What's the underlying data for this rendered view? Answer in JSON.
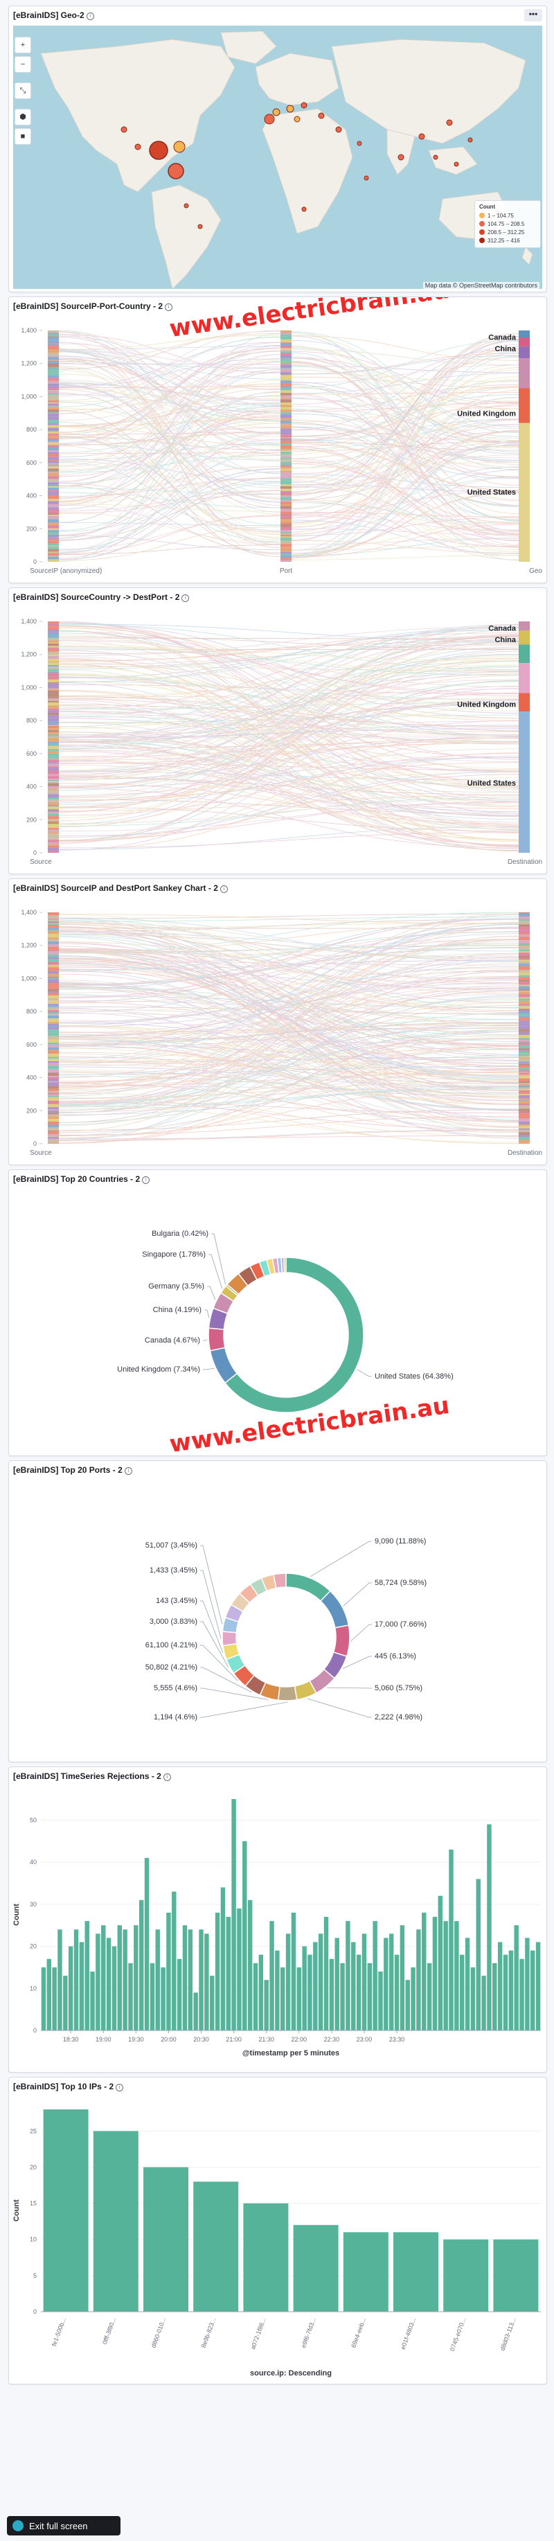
{
  "panels": {
    "geo": {
      "title": "[eBrainIDS] Geo-2",
      "menu_label": "•••",
      "controls": [
        "+",
        "−",
        "⤡",
        "⬢",
        "■"
      ],
      "legend": {
        "title": "Count",
        "items": [
          {
            "label": "1 – 104.75",
            "color": "#f5b651"
          },
          {
            "label": "104.75 – 208.5",
            "color": "#e7664c"
          },
          {
            "label": "208.5 – 312.25",
            "color": "#d4442a"
          },
          {
            "label": "312.25 – 416",
            "color": "#b0250c"
          }
        ]
      },
      "attribution": "Map data © OpenStreetMap contributors"
    },
    "sankey1": {
      "title": "[eBrainIDS] SourceIP-Port-Country - 2",
      "y_ticks": [
        "1,400",
        "1,200",
        "1,000",
        "800",
        "600",
        "400",
        "200",
        "0"
      ],
      "axis_labels": [
        "SourceIP (anonymized)",
        "Port",
        "Geo"
      ],
      "node_labels": [
        "Canada",
        "China",
        "United Kingdom",
        "United States"
      ]
    },
    "sankey2": {
      "title": "[eBrainIDS] SourceCountry -> DestPort - 2",
      "y_ticks": [
        "1,400",
        "1,200",
        "1,000",
        "800",
        "600",
        "400",
        "200",
        "0"
      ],
      "axis_labels": [
        "Source",
        "Destination"
      ],
      "node_labels": [
        "Canada",
        "China",
        "United Kingdom",
        "United States"
      ]
    },
    "sankey3": {
      "title": "[eBrainIDS] SourceIP and DestPort Sankey Chart - 2",
      "y_ticks": [
        "1,400",
        "1,200",
        "1,000",
        "800",
        "600",
        "400",
        "200",
        "0"
      ],
      "axis_labels": [
        "Source",
        "Destination"
      ]
    },
    "countries": {
      "title": "[eBrainIDS] Top 20 Countries - 2"
    },
    "ports": {
      "title": "[eBrainIDS] Top 20 Ports - 2"
    },
    "timeseries": {
      "title": "[eBrainIDS] TimeSeries Rejections - 2"
    },
    "topips": {
      "title": "[eBrainIDS] Top 10 IPs - 2"
    }
  },
  "watermark": "www.electricbrain.au",
  "exit_fullscreen": "Exit full screen",
  "chart_data": [
    {
      "type": "pie",
      "title": "[eBrainIDS] Top 20 Countries - 2",
      "labels": [
        "United States (64.38%)",
        "United Kingdom (7.34%)",
        "Canada (4.67%)",
        "China (4.19%)",
        "Germany (3.5%)",
        "Singapore (1.78%)",
        "Bulgaria (0.42%)"
      ],
      "values": [
        64.38,
        7.34,
        4.67,
        4.19,
        3.5,
        1.78,
        0.42
      ],
      "other_slices": [
        3.2,
        2.8,
        2.1,
        1.6,
        1.2,
        1.0,
        0.8,
        0.6,
        0.4
      ],
      "colors": [
        "#54b399",
        "#6092c0",
        "#d36086",
        "#9170b8",
        "#ca8eae",
        "#d6bf57",
        "#b9a888",
        "#da8b45",
        "#aa6556",
        "#e7664c",
        "#7de2d1",
        "#f1d86f",
        "#e4a6c7",
        "#a0c4e5",
        "#c5b4e3",
        "#e6c220"
      ],
      "legend_position": "none"
    },
    {
      "type": "pie",
      "title": "[eBrainIDS] Top 20 Ports - 2",
      "labels": [
        "9,090 (11.88%)",
        "58,724 (9.58%)",
        "17,000 (7.66%)",
        "445 (6.13%)",
        "5,060 (5.75%)",
        "2,222 (4.98%)",
        "1,194 (4.6%)",
        "5,555 (4.6%)",
        "50,802 (4.21%)",
        "61,100 (4.21%)",
        "3,000 (3.83%)",
        "143 (3.45%)",
        "1,433 (3.45%)",
        "51,007 (3.45%)"
      ],
      "values": [
        11.88,
        9.58,
        7.66,
        6.13,
        5.75,
        4.98,
        4.6,
        4.6,
        4.21,
        4.21,
        3.83,
        3.45,
        3.45,
        3.45
      ],
      "other_slices": [
        3.45,
        3.45,
        3.45,
        3.06,
        3.06,
        3.06
      ],
      "colors": [
        "#54b399",
        "#6092c0",
        "#d36086",
        "#9170b8",
        "#ca8eae",
        "#d6bf57",
        "#b9a888",
        "#da8b45",
        "#aa6556",
        "#e7664c",
        "#7de2d1",
        "#f1d86f",
        "#e4a6c7",
        "#a0c4e5",
        "#c5b4e3",
        "#e8d0b0",
        "#f4b6a2",
        "#b3d9c4",
        "#f0c4a0",
        "#e9a8b6"
      ],
      "legend_position": "none"
    },
    {
      "type": "bar",
      "title": "[eBrainIDS] TimeSeries Rejections - 2",
      "xlabel": "@timestamp per 5 minutes",
      "ylabel": "Count",
      "ylim": [
        0,
        55
      ],
      "y_ticks": [
        0,
        10,
        20,
        30,
        40,
        50
      ],
      "x_ticks": [
        "18:30",
        "19:00",
        "19:30",
        "20:00",
        "20:30",
        "21:00",
        "21:30",
        "22:00",
        "22:30",
        "23:00",
        "23:30"
      ],
      "values": [
        15,
        17,
        15,
        24,
        13,
        20,
        24,
        21,
        26,
        14,
        23,
        25,
        22,
        20,
        25,
        24,
        16,
        25,
        31,
        41,
        16,
        24,
        15,
        28,
        33,
        17,
        25,
        24,
        9,
        24,
        23,
        13,
        28,
        34,
        27,
        55,
        29,
        45,
        31,
        16,
        18,
        12,
        26,
        19,
        15,
        23,
        28,
        15,
        20,
        18,
        21,
        23,
        27,
        17,
        22,
        16,
        26,
        21,
        18,
        23,
        16,
        26,
        14,
        22,
        23,
        18,
        25,
        12,
        15,
        24,
        28,
        16,
        27,
        32,
        26,
        43,
        26,
        18,
        22,
        15,
        36,
        13,
        49,
        16,
        21,
        18,
        19,
        25,
        17,
        22,
        19,
        21
      ],
      "color": "#54b399"
    },
    {
      "type": "bar",
      "title": "[eBrainIDS] Top 10 IPs - 2",
      "xlabel": "source.ip: Descending",
      "ylabel": "Count",
      "ylim": [
        0,
        28
      ],
      "y_ticks": [
        0,
        5,
        10,
        15,
        20,
        25
      ],
      "categories": [
        "fe1-500b...",
        "0fff-3f80...",
        "d860-010...",
        "8e9b-823...",
        "a072-1f86...",
        "e9f6-7fd3...",
        "69e4-eeb...",
        "e01f-4803...",
        "0745-e070...",
        "d8d03-113..."
      ],
      "values": [
        28,
        25,
        20,
        18,
        15,
        12,
        11,
        11,
        10,
        10
      ],
      "color": "#54b399"
    }
  ]
}
